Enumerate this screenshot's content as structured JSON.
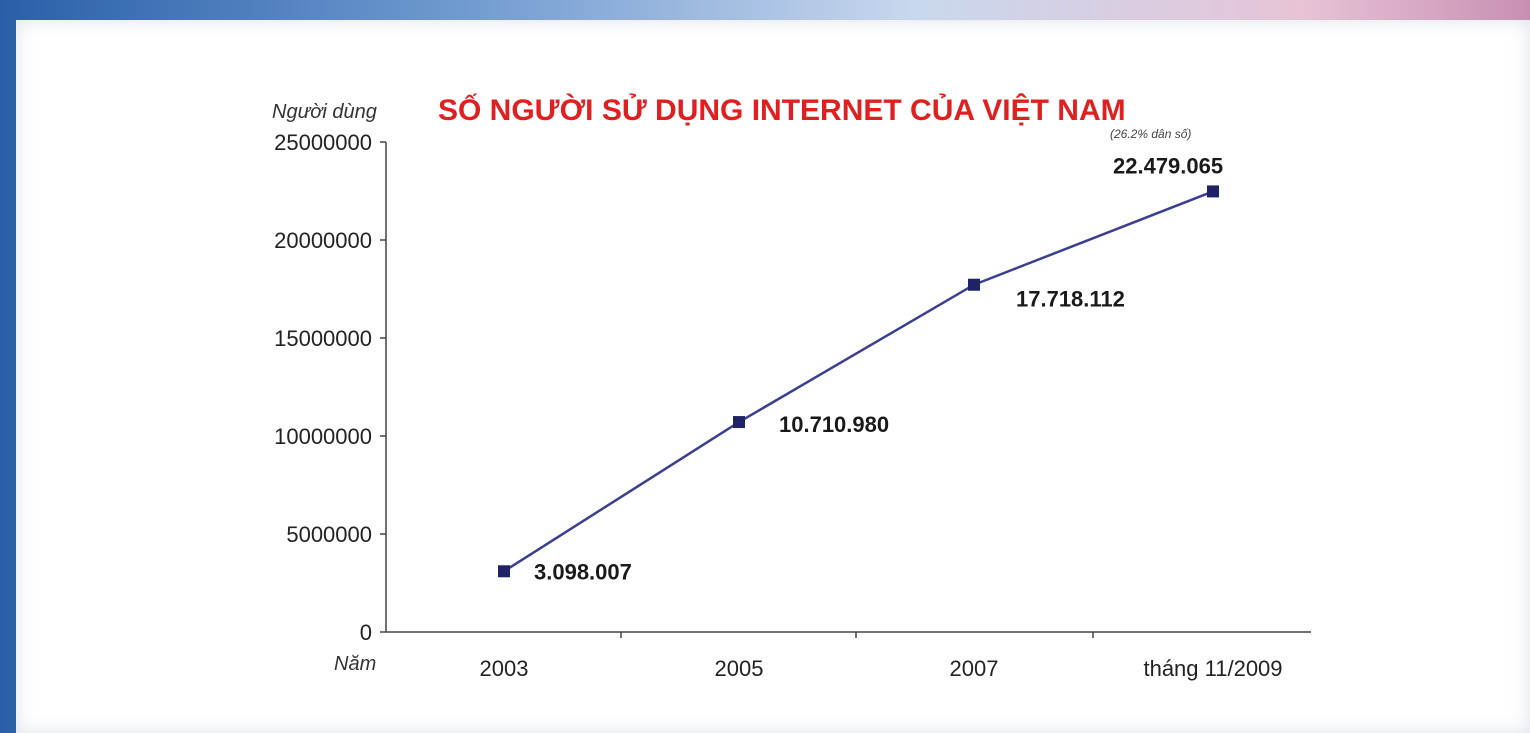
{
  "chart_data": {
    "type": "line",
    "title": "SỐ NGƯỜI SỬ DỤNG INTERNET CỦA VIỆT NAM",
    "ylabel": "Người dùng",
    "xlabel": "Năm",
    "categories": [
      "2003",
      "2005",
      "2007",
      "tháng 11/2009"
    ],
    "series": [
      {
        "values": [
          3098007,
          10710980,
          17718112,
          22479065
        ]
      }
    ],
    "data_labels": [
      "3.098.007",
      "10.710.980",
      "17.718.112",
      "22.479.065"
    ],
    "annotation": "(26.2% dân số)",
    "ylim": [
      0,
      25000000
    ],
    "yticks": [
      0,
      5000000,
      10000000,
      15000000,
      20000000,
      25000000
    ],
    "ytick_labels": [
      "0",
      "5000000",
      "10000000",
      "15000000",
      "20000000",
      "25000000"
    ],
    "grid": false,
    "colors": {
      "line": "#3a3f8f",
      "marker": "#1f2266",
      "title": "#e02020"
    }
  }
}
